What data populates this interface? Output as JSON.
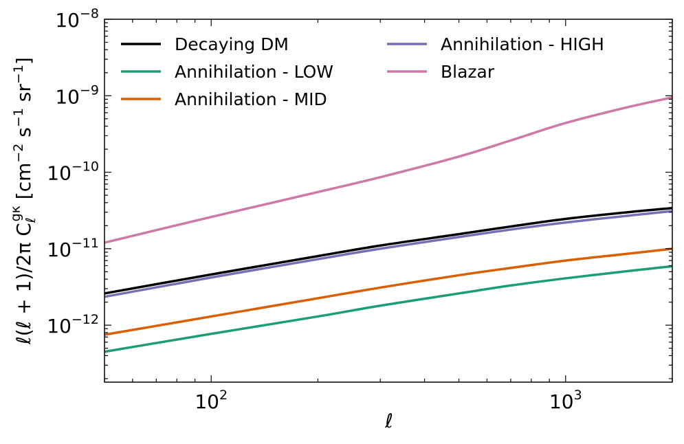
{
  "chart_data": {
    "type": "line",
    "title": "",
    "xlabel": "ℓ",
    "ylabel": "ℓ(ℓ + 1)/2π C_ℓ^gκ [cm⁻² s⁻¹ sr⁻¹]",
    "ylabel_parts": {
      "main": "ℓ(ℓ + 1)/2π C",
      "sub": "ℓ",
      "sup": "gκ",
      "unit_open": " [cm",
      "exp1": "−2",
      "s": " s",
      "exp2": "−1",
      "sr": " sr",
      "exp3": "−1",
      "unit_close": "]"
    },
    "xscale": "log",
    "yscale": "log",
    "xlim": [
      50,
      2000
    ],
    "ylim": [
      1.8e-13,
      1e-08
    ],
    "x_ticks": [
      {
        "value": 100,
        "base": "10",
        "exp": "2"
      },
      {
        "value": 1000,
        "base": "10",
        "exp": "3"
      }
    ],
    "y_ticks": [
      {
        "value": 1e-12,
        "base": "10",
        "exp": "−12"
      },
      {
        "value": 1e-11,
        "base": "10",
        "exp": "−11"
      },
      {
        "value": 1e-10,
        "base": "10",
        "exp": "−10"
      },
      {
        "value": 1e-09,
        "base": "10",
        "exp": "−9"
      },
      {
        "value": 1e-08,
        "base": "10",
        "exp": "−8"
      }
    ],
    "legend_location": "top-left",
    "series": [
      {
        "name": "Decaying DM",
        "color": "#000000",
        "x": [
          50,
          100,
          200,
          300,
          500,
          700,
          1000,
          1500,
          2000
        ],
        "y": [
          2.6e-12,
          4.6e-12,
          8e-12,
          1.1e-11,
          1.55e-11,
          1.95e-11,
          2.45e-11,
          3e-11,
          3.4e-11
        ]
      },
      {
        "name": "Annihilation - LOW",
        "color": "#1b9e77",
        "x": [
          50,
          100,
          200,
          300,
          500,
          700,
          1000,
          1500,
          2000
        ],
        "y": [
          4.5e-13,
          7.7e-13,
          1.3e-12,
          1.8e-12,
          2.6e-12,
          3.3e-12,
          4.1e-12,
          5.1e-12,
          5.9e-12
        ]
      },
      {
        "name": "Annihilation - MID",
        "color": "#d95f02",
        "x": [
          50,
          100,
          200,
          300,
          500,
          700,
          1000,
          1500,
          2000
        ],
        "y": [
          7.5e-13,
          1.3e-12,
          2.25e-12,
          3.1e-12,
          4.5e-12,
          5.6e-12,
          7e-12,
          8.6e-12,
          1e-11
        ]
      },
      {
        "name": "Annihilation - HIGH",
        "color": "#7570b3",
        "x": [
          50,
          100,
          200,
          300,
          500,
          700,
          1000,
          1500,
          2000
        ],
        "y": [
          2.35e-12,
          4.2e-12,
          7.3e-12,
          1e-11,
          1.42e-11,
          1.78e-11,
          2.2e-11,
          2.7e-11,
          3.1e-11
        ]
      },
      {
        "name": "Blazar",
        "color": "#cc79a7",
        "x": [
          50,
          100,
          200,
          300,
          500,
          700,
          1000,
          1500,
          2000
        ],
        "y": [
          1.2e-11,
          2.6e-11,
          5.5e-11,
          8.6e-11,
          1.6e-10,
          2.6e-10,
          4.4e-10,
          7.1e-10,
          9.5e-10
        ]
      }
    ]
  }
}
